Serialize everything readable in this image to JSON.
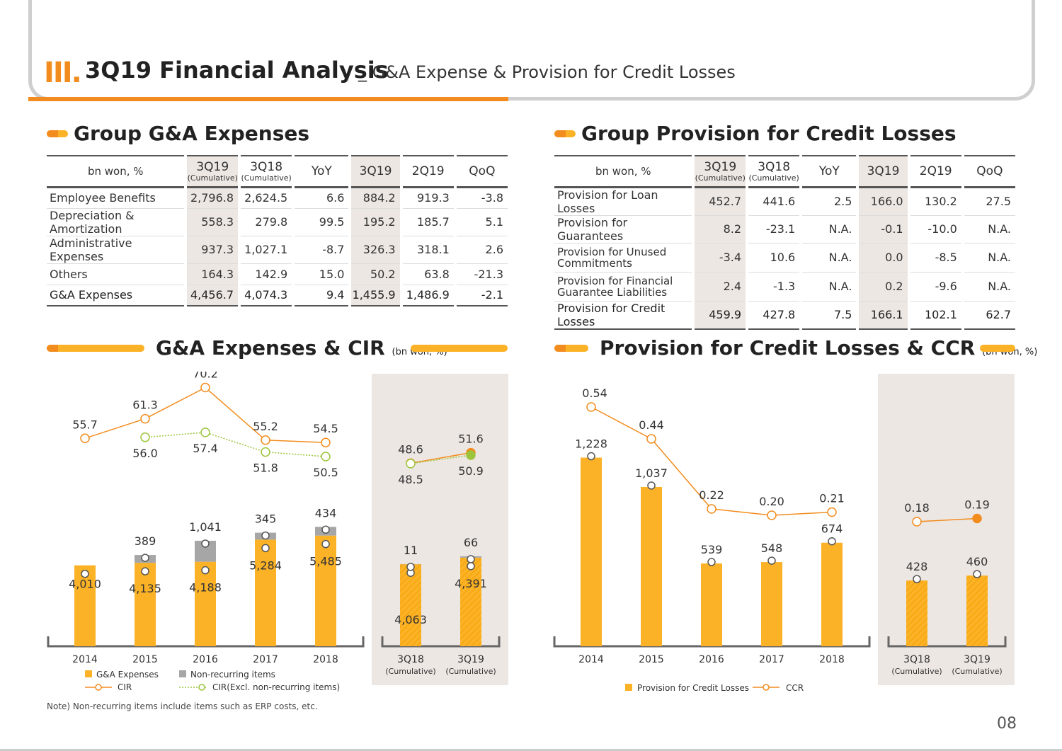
{
  "header": {
    "roman": "III.",
    "title": "3Q19 Financial Analysis",
    "subtitle": "_ G&A Expense & Provision for Credit Losses"
  },
  "ga_section": {
    "title": "Group G&A Expenses",
    "unit_label": "bn won, %",
    "columns": [
      "3Q19",
      "3Q18",
      "YoY",
      "3Q19",
      "2Q19",
      "QoQ"
    ],
    "cumulative": "(Cumulative)",
    "rows": [
      {
        "label": "Employee Benefits",
        "values": [
          "2,796.8",
          "2,624.5",
          "6.6",
          "884.2",
          "919.3",
          "-3.8"
        ]
      },
      {
        "label": "Depreciation & Amortization",
        "values": [
          "558.3",
          "279.8",
          "99.5",
          "195.2",
          "185.7",
          "5.1"
        ]
      },
      {
        "label": "Administrative Expenses",
        "values": [
          "937.3",
          "1,027.1",
          "-8.7",
          "326.3",
          "318.1",
          "2.6"
        ]
      },
      {
        "label": "Others",
        "values": [
          "164.3",
          "142.9",
          "15.0",
          "50.2",
          "63.8",
          "-21.3"
        ]
      }
    ],
    "total": {
      "label": "G&A Expenses",
      "values": [
        "4,456.7",
        "4,074.3",
        "9.4",
        "1,455.9",
        "1,486.9",
        "-2.1"
      ]
    }
  },
  "prov_section": {
    "title": "Group Provision for Credit Losses",
    "unit_label": "bn won, %",
    "columns": [
      "3Q19",
      "3Q18",
      "YoY",
      "3Q19",
      "2Q19",
      "QoQ"
    ],
    "cumulative": "(Cumulative)",
    "rows": [
      {
        "label": "Provision for Loan Losses",
        "values": [
          "452.7",
          "441.6",
          "2.5",
          "166.0",
          "130.2",
          "27.5"
        ]
      },
      {
        "label": "Provision for Guarantees",
        "values": [
          "8.2",
          "-23.1",
          "N.A.",
          "-0.1",
          "-10.0",
          "N.A."
        ]
      },
      {
        "label": "Provision for Unused Commitments",
        "values": [
          "-3.4",
          "10.6",
          "N.A.",
          "0.0",
          "-8.5",
          "N.A."
        ]
      },
      {
        "label": "Provision for Financial Guarantee Liabilities",
        "values": [
          "2.4",
          "-1.3",
          "N.A.",
          "0.2",
          "-9.6",
          "N.A."
        ]
      }
    ],
    "total": {
      "label": "Provision for Credit Losses",
      "values": [
        "459.9",
        "427.8",
        "7.5",
        "166.1",
        "102.1",
        "62.7"
      ]
    }
  },
  "chart_data": [
    {
      "type": "bar",
      "title": "G&A Expenses & CIR",
      "unit": "(bn won, %)",
      "categories": [
        "2014",
        "2015",
        "2016",
        "2017",
        "2018",
        "3Q18",
        "3Q19"
      ],
      "category_sub": [
        "",
        "",
        "",
        "",
        "",
        "(Cumulative)",
        "(Cumulative)"
      ],
      "series": [
        {
          "name": "G&A Expenses",
          "values": [
            4010,
            4135,
            4188,
            5284,
            5485,
            4063,
            4391
          ],
          "labels": [
            "4,010",
            "4,135",
            "4,188",
            "5,284",
            "5,485",
            "4,063",
            "4,391"
          ]
        },
        {
          "name": "Non-recurring items",
          "values": [
            0,
            389,
            1041,
            345,
            434,
            11,
            66
          ],
          "labels": [
            "",
            "389",
            "1,041",
            "345",
            "434",
            "11",
            "66"
          ]
        },
        {
          "name": "CIR",
          "values": [
            55.7,
            61.3,
            70.2,
            55.2,
            54.5,
            48.6,
            51.6
          ]
        },
        {
          "name": "CIR(Excl. non-recurring items)",
          "values": [
            null,
            56.0,
            57.4,
            51.8,
            50.5,
            48.5,
            50.9
          ]
        }
      ],
      "colors": {
        "bar": "#fbb226",
        "nonrec": "#a6a6a6",
        "cir": "#f28c1e",
        "cir_ex": "#9cc43c"
      },
      "note": "Note) Non-recurring items include items such as ERP costs, etc."
    },
    {
      "type": "bar",
      "title": "Provision for Credit Losses & CCR",
      "unit": "(bn won, %)",
      "categories": [
        "2014",
        "2015",
        "2016",
        "2017",
        "2018",
        "3Q18",
        "3Q19"
      ],
      "category_sub": [
        "",
        "",
        "",
        "",
        "",
        "(Cumulative)",
        "(Cumulative)"
      ],
      "series": [
        {
          "name": "Provision for Credit Losses",
          "values": [
            1228,
            1037,
            539,
            548,
            674,
            428,
            460
          ],
          "labels": [
            "1,228",
            "1,037",
            "539",
            "548",
            "674",
            "428",
            "460"
          ]
        },
        {
          "name": "CCR",
          "values": [
            0.54,
            0.44,
            0.22,
            0.2,
            0.21,
            0.18,
            0.19
          ],
          "labels": [
            "0.54",
            "0.44",
            "0.22",
            "0.20",
            "0.21",
            "0.18",
            "0.19"
          ]
        }
      ],
      "colors": {
        "bar": "#fbb226",
        "line": "#f28c1e"
      }
    }
  ],
  "page_number": "08"
}
